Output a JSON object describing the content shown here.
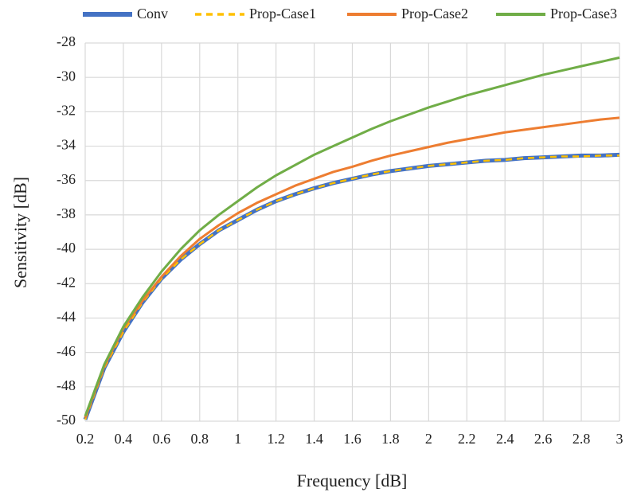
{
  "chart_data": {
    "type": "line",
    "x_label": "Frequency [dB]",
    "y_label": "Sensitivity [dB]",
    "x": [
      0.2,
      0.3,
      0.4,
      0.5,
      0.6,
      0.7,
      0.8,
      0.9,
      1.0,
      1.1,
      1.2,
      1.3,
      1.4,
      1.5,
      1.6,
      1.7,
      1.8,
      1.9,
      2.0,
      2.1,
      2.2,
      2.3,
      2.4,
      2.5,
      2.6,
      2.7,
      2.8,
      2.9,
      3.0
    ],
    "series": [
      {
        "name": "Conv",
        "color": "#4472c4",
        "width": 5,
        "dashed": false,
        "values": [
          -49.9,
          -46.9,
          -44.8,
          -43.1,
          -41.7,
          -40.6,
          -39.7,
          -38.9,
          -38.3,
          -37.7,
          -37.2,
          -36.8,
          -36.45,
          -36.15,
          -35.9,
          -35.65,
          -35.45,
          -35.3,
          -35.15,
          -35.05,
          -34.95,
          -34.85,
          -34.8,
          -34.7,
          -34.65,
          -34.6,
          -34.55,
          -34.55,
          -34.5
        ]
      },
      {
        "name": "Prop-Case1",
        "color": "#ffc000",
        "width": 2.5,
        "dashed": true,
        "values": [
          -49.9,
          -46.9,
          -44.8,
          -43.1,
          -41.7,
          -40.6,
          -39.7,
          -38.9,
          -38.3,
          -37.7,
          -37.2,
          -36.8,
          -36.45,
          -36.15,
          -35.9,
          -35.65,
          -35.45,
          -35.3,
          -35.15,
          -35.05,
          -34.95,
          -34.85,
          -34.8,
          -34.7,
          -34.65,
          -34.6,
          -34.6,
          -34.55,
          -34.55
        ]
      },
      {
        "name": "Prop-Case2",
        "color": "#ed7d31",
        "width": 3,
        "dashed": false,
        "values": [
          -49.8,
          -46.8,
          -44.6,
          -43.0,
          -41.6,
          -40.4,
          -39.4,
          -38.6,
          -37.9,
          -37.3,
          -36.8,
          -36.3,
          -35.9,
          -35.5,
          -35.2,
          -34.85,
          -34.55,
          -34.3,
          -34.05,
          -33.8,
          -33.6,
          -33.4,
          -33.2,
          -33.05,
          -32.9,
          -32.75,
          -32.6,
          -32.45,
          -32.35
        ]
      },
      {
        "name": "Prop-Case3",
        "color": "#70ad47",
        "width": 3,
        "dashed": false,
        "values": [
          -49.7,
          -46.7,
          -44.5,
          -42.8,
          -41.3,
          -40.0,
          -38.9,
          -38.0,
          -37.2,
          -36.4,
          -35.7,
          -35.1,
          -34.5,
          -34.0,
          -33.5,
          -33.0,
          -32.55,
          -32.15,
          -31.75,
          -31.4,
          -31.05,
          -30.75,
          -30.45,
          -30.15,
          -29.85,
          -29.6,
          -29.35,
          -29.1,
          -28.85
        ]
      }
    ],
    "xlim": [
      0.2,
      3
    ],
    "xticks": [
      0.2,
      0.4,
      0.6,
      0.8,
      1,
      1.2,
      1.4,
      1.6,
      1.8,
      2,
      2.2,
      2.4,
      2.6,
      2.8,
      3
    ],
    "ylim": [
      -50,
      -28
    ],
    "yticks": [
      -50,
      -48,
      -46,
      -44,
      -42,
      -40,
      -38,
      -36,
      -34,
      -32,
      -30,
      -28
    ],
    "grid": true,
    "legend_position": "top"
  }
}
